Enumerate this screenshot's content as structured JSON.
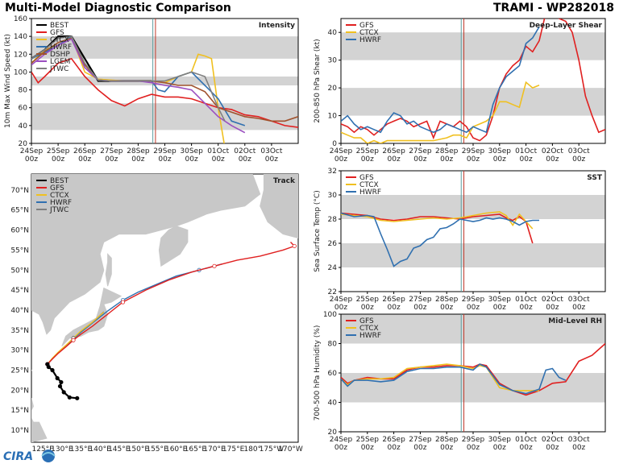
{
  "header": {
    "title": "Multi-Model Diagnostic Comparison",
    "storm": "TRAMI - WP282018",
    "logo_text": "CIRA"
  },
  "colors": {
    "BEST": "#000000",
    "GFS": "#e02020",
    "CTCX": "#f0c020",
    "HWRF": "#3070b0",
    "DSHP": "#a0522d",
    "LGEM": "#9b4fc0",
    "JTWC": "#808080",
    "band": "#d3d3d3",
    "line_now": "#5f9ea0",
    "line_init": "#c0392b"
  },
  "time_ticks": [
    "24Sep\n00z",
    "25Sep\n00z",
    "26Sep\n00z",
    "27Sep\n00z",
    "28Sep\n00z",
    "29Sep\n00z",
    "30Sep\n00z",
    "01Oct\n00z",
    "02Oct\n00z",
    "03Oct\n00z"
  ],
  "chart_data": [
    {
      "id": "intensity",
      "type": "line",
      "title": "Intensity",
      "ylabel": "10m Max Wind Speed (kt)",
      "ylim": [
        20,
        160
      ],
      "yticks": [
        20,
        40,
        60,
        80,
        100,
        120,
        140,
        160
      ],
      "bands": [
        [
          35,
          65
        ],
        [
          85,
          95
        ],
        [
          115,
          140
        ]
      ],
      "legend": [
        "BEST",
        "GFS",
        "CTCX",
        "HWRF",
        "DSHP",
        "LGEM",
        "JTWC"
      ],
      "series": [
        {
          "name": "BEST",
          "x": [
            0,
            0.5,
            1,
            1.5,
            2,
            2.5,
            3,
            3.5,
            4,
            4.5
          ],
          "y": [
            115,
            125,
            140,
            140,
            115,
            90,
            90,
            90,
            90,
            90
          ]
        },
        {
          "name": "GFS",
          "x": [
            0,
            0.25,
            0.5,
            1,
            1.5,
            2,
            2.5,
            3,
            3.5,
            4,
            4.5,
            5,
            5.5,
            6,
            6.5,
            7,
            7.5,
            8,
            8.5,
            9,
            9.5,
            10
          ],
          "y": [
            100,
            88,
            95,
            110,
            115,
            95,
            80,
            68,
            62,
            70,
            75,
            72,
            72,
            70,
            65,
            60,
            58,
            52,
            50,
            45,
            40,
            38
          ]
        },
        {
          "name": "CTCX",
          "x": [
            0,
            0.5,
            1,
            1.5,
            2,
            2.5,
            3,
            3.5,
            4,
            4.5,
            5,
            5.5,
            6,
            6.25,
            6.5,
            6.75,
            7,
            7.25
          ],
          "y": [
            110,
            125,
            130,
            140,
            100,
            92,
            91,
            90,
            90,
            90,
            88,
            95,
            100,
            120,
            118,
            115,
            60,
            15
          ]
        },
        {
          "name": "HWRF",
          "x": [
            0,
            0.5,
            1,
            1.5,
            2,
            2.5,
            3,
            3.5,
            4,
            4.5,
            4.75,
            5,
            5.5,
            6,
            6.5,
            7,
            7.5,
            8
          ],
          "y": [
            115,
            122,
            130,
            140,
            105,
            91,
            90,
            90,
            90,
            90,
            80,
            78,
            95,
            100,
            85,
            70,
            45,
            40
          ]
        },
        {
          "name": "DSHP",
          "x": [
            0,
            0.5,
            1,
            1.5,
            2,
            2.5,
            3,
            3.5,
            4,
            4.5,
            5,
            5.5,
            6,
            6.5,
            7,
            7.5,
            8,
            8.5,
            9,
            9.5,
            10
          ],
          "y": [
            110,
            123,
            133,
            138,
            108,
            91,
            90,
            90,
            90,
            90,
            88,
            85,
            85,
            78,
            60,
            55,
            50,
            48,
            45,
            45,
            50
          ]
        },
        {
          "name": "LGEM",
          "x": [
            0,
            0.5,
            1,
            1.5,
            2,
            2.5,
            3,
            3.5,
            4,
            4.5,
            5,
            5.5,
            6,
            6.5,
            7,
            7.5,
            8
          ],
          "y": [
            108,
            120,
            130,
            137,
            105,
            91,
            90,
            90,
            90,
            88,
            85,
            83,
            80,
            65,
            50,
            40,
            32
          ]
        },
        {
          "name": "JTWC",
          "x": [
            0,
            0.5,
            1,
            1.5,
            2,
            2.5,
            3,
            3.5,
            4,
            4.5,
            5,
            5.5,
            6,
            6.5,
            7,
            7.25
          ],
          "y": [
            115,
            125,
            138,
            140,
            110,
            91,
            90,
            90,
            90,
            90,
            90,
            95,
            100,
            95,
            60,
            45
          ]
        }
      ]
    },
    {
      "id": "shear",
      "type": "line",
      "title": "Deep-Layer Shear",
      "ylabel": "200-850 hPa Shear (kt)",
      "ylim": [
        0,
        45
      ],
      "yticks": [
        0,
        10,
        20,
        30,
        40
      ],
      "bands": [
        [
          10,
          20
        ],
        [
          30,
          40
        ]
      ],
      "legend": [
        "GFS",
        "CTCX",
        "HWRF"
      ],
      "series": [
        {
          "name": "GFS",
          "x": [
            0,
            0.25,
            0.5,
            0.75,
            1,
            1.25,
            1.5,
            1.75,
            2,
            2.25,
            2.5,
            2.75,
            3,
            3.25,
            3.5,
            3.75,
            4,
            4.25,
            4.5,
            4.75,
            5,
            5.25,
            5.5,
            5.75,
            6,
            6.25,
            6.5,
            6.75,
            7,
            7.25,
            7.5,
            7.75,
            8,
            8.25,
            8.5,
            8.75,
            9,
            9.25,
            9.5,
            9.75,
            10
          ],
          "y": [
            7,
            6,
            4,
            6,
            5,
            3,
            5,
            7,
            8,
            9,
            8,
            6,
            7,
            8,
            2,
            8,
            7,
            6,
            8,
            6,
            2,
            1,
            3,
            10,
            20,
            25,
            28,
            30,
            35,
            33,
            37,
            47,
            48,
            45,
            44,
            40,
            30,
            17,
            10,
            4,
            5
          ]
        },
        {
          "name": "CTCX",
          "x": [
            0,
            0.25,
            0.5,
            0.75,
            1,
            1.25,
            1.5,
            1.75,
            2,
            2.5,
            3,
            3.5,
            4,
            4.25,
            4.5,
            4.75,
            5,
            5.25,
            5.5,
            5.75,
            6,
            6.25,
            6.5,
            6.75,
            7,
            7.25,
            7.5
          ],
          "y": [
            4,
            3,
            2,
            2,
            0,
            1,
            0,
            1,
            1,
            1,
            1,
            1,
            2,
            3,
            3,
            2,
            6,
            7,
            8,
            10,
            15,
            15,
            14,
            13,
            22,
            20,
            21
          ]
        },
        {
          "name": "HWRF",
          "x": [
            0,
            0.25,
            0.5,
            0.75,
            1,
            1.25,
            1.5,
            1.75,
            2,
            2.25,
            2.5,
            2.75,
            3,
            3.25,
            3.5,
            3.75,
            4,
            4.25,
            4.5,
            4.75,
            5,
            5.25,
            5.5,
            5.75,
            6,
            6.25,
            6.5,
            6.75,
            7,
            7.25,
            7.5
          ],
          "y": [
            8,
            10,
            7,
            5,
            6,
            5,
            4,
            8,
            11,
            10,
            7,
            8,
            6,
            5,
            4,
            5,
            7,
            6,
            5,
            4,
            6,
            5,
            4,
            14,
            20,
            24,
            26,
            28,
            36,
            38,
            42
          ]
        }
      ]
    },
    {
      "id": "sst",
      "type": "line",
      "title": "SST",
      "ylabel": "Sea Surface Temp (°C)",
      "ylim": [
        22,
        32
      ],
      "yticks": [
        22,
        24,
        26,
        28,
        30,
        32
      ],
      "bands": [
        [
          24,
          26
        ],
        [
          28,
          30
        ]
      ],
      "legend": [
        "GFS",
        "CTCX",
        "HWRF"
      ],
      "series": [
        {
          "name": "GFS",
          "x": [
            0,
            0.5,
            1,
            1.5,
            2,
            2.5,
            3,
            3.5,
            4,
            4.5,
            5,
            5.5,
            6,
            6.25,
            6.5,
            6.75,
            7,
            7.25
          ],
          "y": [
            28.5,
            28.4,
            28.3,
            28,
            27.9,
            28,
            28.2,
            28.2,
            28.1,
            28,
            28.2,
            28.3,
            28.4,
            28.1,
            27.9,
            28.2,
            27.8,
            26
          ]
        },
        {
          "name": "CTCX",
          "x": [
            0,
            0.5,
            1,
            1.5,
            2,
            2.5,
            3,
            3.5,
            4,
            4.5,
            5,
            5.5,
            6,
            6.25,
            6.5,
            6.75,
            7,
            7.25
          ],
          "y": [
            28.4,
            28.3,
            28.2,
            27.9,
            27.8,
            27.9,
            28,
            28.1,
            28,
            28.1,
            28.3,
            28.5,
            28.6,
            28.3,
            27.5,
            28.4,
            27.8,
            27.2
          ]
        },
        {
          "name": "HWRF",
          "x": [
            0,
            0.5,
            1,
            1.25,
            1.5,
            1.75,
            2,
            2.25,
            2.5,
            2.75,
            3,
            3.25,
            3.5,
            3.75,
            4,
            4.25,
            4.5,
            4.75,
            5,
            5.25,
            5.5,
            5.75,
            6,
            6.25,
            6.5,
            6.75,
            7,
            7.25,
            7.5
          ],
          "y": [
            28.5,
            28.2,
            28.3,
            28.2,
            26.8,
            25.5,
            24.1,
            24.5,
            24.7,
            25.6,
            25.8,
            26.3,
            26.5,
            27.2,
            27.3,
            27.6,
            28,
            27.9,
            27.8,
            27.9,
            28.1,
            28,
            28.1,
            28,
            27.8,
            27.5,
            27.8,
            27.9,
            27.9
          ]
        }
      ]
    },
    {
      "id": "rh",
      "type": "line",
      "title": "Mid-Level RH",
      "ylabel": "700-500 hPa Humidity (%)",
      "ylim": [
        20,
        100
      ],
      "yticks": [
        20,
        40,
        60,
        80,
        100
      ],
      "bands": [
        [
          40,
          60
        ],
        [
          80,
          100
        ]
      ],
      "legend": [
        "GFS",
        "CTCX",
        "HWRF"
      ],
      "series": [
        {
          "name": "GFS",
          "x": [
            0,
            0.25,
            0.5,
            1,
            1.5,
            2,
            2.5,
            3,
            3.5,
            4,
            4.5,
            5,
            5.25,
            5.5,
            6,
            6.5,
            7,
            7.5,
            8,
            8.5,
            9,
            9.5,
            10
          ],
          "y": [
            57,
            53,
            55,
            57,
            56,
            56,
            62,
            64,
            64,
            65,
            65,
            64,
            66,
            65,
            53,
            48,
            45,
            48,
            53,
            54,
            68,
            72,
            80
          ]
        },
        {
          "name": "CTCX",
          "x": [
            0,
            0.25,
            0.5,
            1,
            1.5,
            2,
            2.5,
            3,
            3.5,
            4,
            4.5,
            5,
            5.25,
            5.5,
            6,
            6.5,
            7,
            7.5
          ],
          "y": [
            56,
            52,
            55,
            56,
            56,
            57,
            63,
            64,
            65,
            66,
            65,
            63,
            65,
            64,
            50,
            48,
            48,
            48
          ]
        },
        {
          "name": "HWRF",
          "x": [
            0,
            0.25,
            0.5,
            1,
            1.5,
            2,
            2.5,
            3,
            3.5,
            4,
            4.5,
            5,
            5.25,
            5.5,
            6,
            6.5,
            7,
            7.5,
            7.75,
            8,
            8.25,
            8.5
          ],
          "y": [
            56,
            51,
            55,
            55,
            54,
            55,
            61,
            63,
            63,
            64,
            64,
            62,
            66,
            64,
            52,
            48,
            46,
            49,
            62,
            63,
            57,
            55
          ]
        }
      ]
    },
    {
      "id": "track",
      "type": "scatter",
      "title": "Track",
      "lat_ticks": [
        "10°N",
        "15°N",
        "20°N",
        "25°N",
        "30°N",
        "35°N",
        "40°N",
        "45°N",
        "50°N",
        "55°N",
        "60°N",
        "65°N",
        "70°N"
      ],
      "lon_ticks": [
        "125°E",
        "130°E",
        "135°E",
        "140°E",
        "145°E",
        "150°E",
        "155°E",
        "160°E",
        "165°E",
        "170°E",
        "175°E",
        "180°",
        "175°W",
        "170°W"
      ],
      "legend": [
        "BEST",
        "GFS",
        "CTCX",
        "HWRF",
        "JTWC"
      ],
      "series": [
        {
          "name": "BEST",
          "lon": [
            134,
            132,
            130.5,
            129.5,
            129.8,
            128.8,
            127.5,
            126.5,
            126.2
          ],
          "lat": [
            18,
            18.2,
            19.5,
            21,
            22,
            23,
            25,
            25.8,
            26.5
          ]
        },
        {
          "name": "GFS",
          "lon": [
            126.2,
            127.5,
            129,
            131,
            133,
            135,
            138,
            142,
            146,
            152,
            158,
            164,
            170,
            176,
            182,
            188,
            191,
            190
          ],
          "lat": [
            26.5,
            27.8,
            29.2,
            30.8,
            32.5,
            34,
            36,
            39,
            42,
            45,
            47.5,
            49.5,
            51,
            52.5,
            53.5,
            55,
            56,
            57
          ]
        },
        {
          "name": "CTCX",
          "lon": [
            126.2,
            127.5,
            129,
            131,
            133,
            135,
            138,
            141
          ],
          "lat": [
            26.5,
            28,
            29.5,
            31.2,
            33,
            34.8,
            37,
            39.5
          ]
        },
        {
          "name": "HWRF",
          "lon": [
            126.2,
            127.5,
            129,
            131,
            133,
            135,
            138,
            142,
            146,
            150,
            155,
            160,
            166,
            172
          ],
          "lat": [
            26.5,
            27.8,
            29.3,
            31,
            32.8,
            34.5,
            36.8,
            39.8,
            42.5,
            44.5,
            46.5,
            48.5,
            50,
            51.5
          ]
        },
        {
          "name": "JTWC",
          "lon": [
            126.2,
            127.5,
            129,
            131,
            133,
            135,
            138,
            141
          ],
          "lat": [
            26.5,
            27.9,
            29.4,
            31.1,
            32.9,
            34.6,
            36.9,
            39.6
          ]
        }
      ]
    }
  ]
}
